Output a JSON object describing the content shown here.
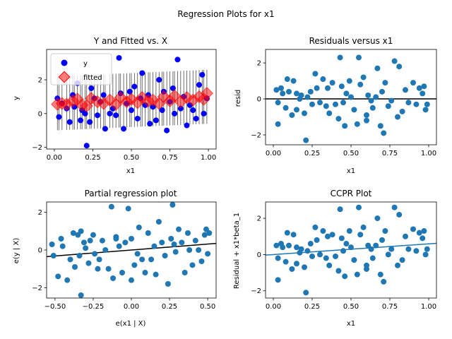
{
  "title": "Regression Plots for x1",
  "chart_data": [
    {
      "type": "scatter",
      "title": "Y and Fitted vs. X",
      "xlabel": "x1",
      "ylabel": "y",
      "xlim": [
        -0.05,
        1.05
      ],
      "ylim": [
        -2.1,
        3.8
      ],
      "xticks": [
        0.0,
        0.25,
        0.5,
        0.75,
        1.0
      ],
      "xticklabels": [
        "0.00",
        "0.25",
        "0.50",
        "0.75",
        "1.00"
      ],
      "yticks": [
        -2,
        0,
        2
      ],
      "yticklabels": [
        "−2",
        "0",
        "2"
      ],
      "legend": {
        "position": "top-left",
        "entries": [
          "y",
          "fitted"
        ]
      },
      "colors": {
        "y": "#0000ff",
        "fitted": "#ff0000",
        "interval": "#000000"
      },
      "series": [
        {
          "name": "y",
          "x": [
            0.02,
            0.03,
            0.05,
            0.08,
            0.1,
            0.12,
            0.13,
            0.15,
            0.17,
            0.18,
            0.2,
            0.21,
            0.23,
            0.24,
            0.26,
            0.28,
            0.3,
            0.32,
            0.33,
            0.36,
            0.38,
            0.4,
            0.42,
            0.43,
            0.45,
            0.47,
            0.49,
            0.5,
            0.52,
            0.54,
            0.56,
            0.57,
            0.59,
            0.61,
            0.62,
            0.64,
            0.66,
            0.68,
            0.7,
            0.71,
            0.73,
            0.75,
            0.77,
            0.78,
            0.8,
            0.82,
            0.84,
            0.86,
            0.88,
            0.9,
            0.92,
            0.94,
            0.96,
            0.97,
            0.99
          ],
          "values": [
            0.9,
            -0.2,
            0.6,
            0.3,
            -0.5,
            1.1,
            0.4,
            1.8,
            -0.4,
            0.2,
            0.0,
            -1.9,
            -0.5,
            1.5,
            0.9,
            -0.1,
            0.7,
            1.1,
            -0.9,
            0.0,
            0.3,
            -0.1,
            3.3,
            1.2,
            -0.9,
            0.6,
            1.3,
            0.2,
            1.6,
            -0.3,
            0.9,
            2.4,
            0.5,
            1.1,
            -0.6,
            0.4,
            -0.4,
            2.0,
            0.2,
            1.3,
            -1.0,
            0.7,
            1.5,
            0.0,
            3.2,
            0.3,
            1.0,
            -0.7,
            0.5,
            0.2,
            -0.3,
            1.7,
            2.3,
            0.0,
            0.9
          ]
        },
        {
          "name": "fitted",
          "x": [
            0.02,
            0.05,
            0.08,
            0.12,
            0.15,
            0.18,
            0.21,
            0.24,
            0.28,
            0.32,
            0.36,
            0.4,
            0.43,
            0.47,
            0.5,
            0.54,
            0.57,
            0.61,
            0.64,
            0.68,
            0.71,
            0.75,
            0.78,
            0.82,
            0.86,
            0.9,
            0.94,
            0.97,
            0.99
          ],
          "values": [
            0.55,
            0.6,
            0.55,
            0.75,
            0.85,
            0.5,
            0.45,
            0.9,
            0.7,
            0.6,
            0.8,
            0.55,
            0.95,
            0.7,
            0.85,
            0.65,
            0.95,
            0.75,
            0.8,
            0.6,
            1.0,
            0.75,
            1.05,
            0.7,
            0.95,
            0.8,
            1.0,
            0.85,
            1.2
          ]
        }
      ]
    },
    {
      "type": "scatter",
      "title": "Residuals versus x1",
      "xlabel": "x1",
      "ylabel": "resid",
      "xlim": [
        -0.05,
        1.05
      ],
      "ylim": [
        -2.55,
        2.75
      ],
      "xticks": [
        0.0,
        0.25,
        0.5,
        0.75,
        1.0
      ],
      "xticklabels": [
        "0.00",
        "0.25",
        "0.50",
        "0.75",
        "1.00"
      ],
      "yticks": [
        -2,
        0,
        2
      ],
      "yticklabels": [
        "−2",
        "0",
        "2"
      ],
      "hline": 0,
      "colors": {
        "points": "#1f77b4",
        "line": "#000000"
      },
      "x": [
        0.02,
        0.03,
        0.03,
        0.05,
        0.06,
        0.08,
        0.09,
        0.1,
        0.12,
        0.13,
        0.15,
        0.15,
        0.17,
        0.18,
        0.2,
        0.21,
        0.22,
        0.24,
        0.25,
        0.27,
        0.28,
        0.3,
        0.32,
        0.34,
        0.36,
        0.38,
        0.4,
        0.42,
        0.43,
        0.44,
        0.46,
        0.47,
        0.49,
        0.5,
        0.52,
        0.54,
        0.55,
        0.56,
        0.58,
        0.6,
        0.61,
        0.63,
        0.64,
        0.66,
        0.67,
        0.69,
        0.7,
        0.71,
        0.72,
        0.74,
        0.76,
        0.78,
        0.8,
        0.81,
        0.83,
        0.85,
        0.87,
        0.9,
        0.92,
        0.94,
        0.96,
        0.97,
        0.98,
        0.99,
        0.6,
        0.35,
        0.45
      ],
      "y": [
        0.5,
        -0.2,
        -1.4,
        0.6,
        0.3,
        -0.5,
        1.1,
        0.4,
        -0.9,
        1.0,
        0.3,
        -0.6,
        0.0,
        0.2,
        -0.8,
        -2.3,
        0.1,
        0.4,
        -0.3,
        1.4,
        0.6,
        -0.2,
        1.1,
        -0.4,
        -0.8,
        0.9,
        -0.3,
        -1.1,
        2.3,
        0.7,
        -1.5,
        0.3,
        1.0,
        0.1,
        -0.6,
        -1.4,
        2.3,
        0.8,
        1.2,
        -0.9,
        0.2,
        -0.1,
        -0.5,
        0.1,
        1.7,
        -1.5,
        0.4,
        -1.9,
        0.9,
        -0.4,
        -0.1,
        2.1,
        -1.0,
        1.8,
        -0.7,
        0.5,
        -0.2,
        0.9,
        -0.3,
        0.6,
        0.3,
        0.7,
        -0.6,
        -0.3,
        -1.2,
        0.6,
        -0.2
      ]
    },
    {
      "type": "scatter",
      "title": "Partial regression plot",
      "xlabel": "e(x1 | X)",
      "ylabel": "e(y | X)",
      "xlim": [
        -0.555,
        0.555
      ],
      "ylim": [
        -2.55,
        2.55
      ],
      "xticks": [
        -0.5,
        -0.25,
        0.0,
        0.25,
        0.5
      ],
      "xticklabels": [
        "−0.50",
        "−0.25",
        "0.00",
        "0.25",
        "0.50"
      ],
      "yticks": [
        -2,
        0,
        2
      ],
      "yticklabels": [
        "−2",
        "0",
        "2"
      ],
      "fit_line": {
        "x": [
          -0.555,
          0.555
        ],
        "y": [
          -0.35,
          0.35
        ]
      },
      "colors": {
        "points": "#1f77b4",
        "line": "#000000"
      },
      "x": [
        -0.52,
        -0.51,
        -0.48,
        -0.46,
        -0.45,
        -0.42,
        -0.4,
        -0.38,
        -0.37,
        -0.35,
        -0.34,
        -0.33,
        -0.31,
        -0.3,
        -0.28,
        -0.27,
        -0.25,
        -0.24,
        -0.22,
        -0.21,
        -0.19,
        -0.17,
        -0.15,
        -0.13,
        -0.12,
        -0.1,
        -0.08,
        -0.06,
        -0.04,
        -0.02,
        0.0,
        0.02,
        0.04,
        0.05,
        0.07,
        0.09,
        0.11,
        0.13,
        0.15,
        0.16,
        0.18,
        0.2,
        0.22,
        0.24,
        0.26,
        0.27,
        0.29,
        0.31,
        0.33,
        0.35,
        0.37,
        0.38,
        0.4,
        0.42,
        0.44,
        0.46,
        0.48,
        0.49,
        0.5,
        0.51,
        -0.33,
        0.0,
        0.28,
        -0.1
      ],
      "y": [
        0.3,
        -0.3,
        -1.4,
        0.6,
        0.2,
        -1.6,
        -0.5,
        0.9,
        -0.9,
        0.8,
        -0.3,
        -2.4,
        0.4,
        0.1,
        -0.7,
        0.5,
        0.8,
        -0.2,
        -1.0,
        -0.5,
        0.5,
        0.0,
        -1.0,
        2.3,
        -1.5,
        0.7,
        0.2,
        -1.2,
        0.4,
        2.2,
        0.6,
        -0.8,
        -0.2,
        1.2,
        -0.5,
        -1.2,
        0.9,
        -0.5,
        0.2,
        -1.3,
        1.5,
        0.4,
        -0.3,
        -1.8,
        0.6,
        2.4,
        -0.1,
        1.1,
        0.4,
        -1.2,
        0.9,
        0.0,
        -0.8,
        0.5,
        0.0,
        -0.6,
        0.8,
        1.1,
        -0.2,
        0.9,
        1.0,
        -1.6,
        0.3,
        0.6
      ]
    },
    {
      "type": "scatter",
      "title": "CCPR Plot",
      "xlabel": "x1",
      "ylabel": "Residual + x1*beta_1",
      "xlim": [
        -0.05,
        1.05
      ],
      "ylim": [
        -2.4,
        2.9
      ],
      "xticks": [
        0.0,
        0.25,
        0.5,
        0.75,
        1.0
      ],
      "xticklabels": [
        "0.00",
        "0.25",
        "0.50",
        "0.75",
        "1.00"
      ],
      "yticks": [
        -2,
        0,
        2
      ],
      "yticklabels": [
        "−2",
        "0",
        "2"
      ],
      "fit_line": {
        "x": [
          -0.05,
          1.05
        ],
        "y": [
          -0.03,
          0.62
        ]
      },
      "colors": {
        "points": "#1f77b4",
        "line": "#1f77b4"
      },
      "x": [
        0.02,
        0.03,
        0.03,
        0.05,
        0.06,
        0.08,
        0.09,
        0.1,
        0.12,
        0.13,
        0.15,
        0.15,
        0.17,
        0.18,
        0.2,
        0.21,
        0.22,
        0.24,
        0.25,
        0.27,
        0.28,
        0.3,
        0.32,
        0.34,
        0.36,
        0.38,
        0.4,
        0.42,
        0.43,
        0.44,
        0.46,
        0.47,
        0.49,
        0.5,
        0.52,
        0.54,
        0.55,
        0.56,
        0.58,
        0.6,
        0.61,
        0.63,
        0.64,
        0.66,
        0.67,
        0.69,
        0.7,
        0.71,
        0.72,
        0.74,
        0.76,
        0.78,
        0.8,
        0.81,
        0.83,
        0.85,
        0.87,
        0.9,
        0.92,
        0.94,
        0.96,
        0.97,
        0.98,
        0.99,
        0.6,
        0.35,
        0.45
      ],
      "y": [
        0.5,
        -0.2,
        -1.4,
        0.6,
        0.4,
        -0.4,
        1.2,
        0.5,
        -0.8,
        1.1,
        0.4,
        -0.5,
        0.1,
        0.3,
        -0.7,
        -2.1,
        0.2,
        0.6,
        -0.1,
        1.5,
        0.8,
        0.0,
        1.3,
        -0.2,
        -0.6,
        1.1,
        -0.1,
        -0.9,
        2.5,
        0.9,
        -1.2,
        0.6,
        1.3,
        0.4,
        -0.3,
        -1.1,
        2.6,
        1.1,
        1.5,
        -0.6,
        0.5,
        0.3,
        -0.2,
        0.5,
        2.0,
        -1.1,
        0.8,
        -1.5,
        1.3,
        0.0,
        0.3,
        2.6,
        -0.6,
        2.2,
        -0.3,
        1.0,
        0.3,
        1.4,
        0.2,
        1.2,
        0.9,
        1.3,
        0.0,
        0.3,
        -0.8,
        1.0,
        0.2
      ]
    }
  ]
}
